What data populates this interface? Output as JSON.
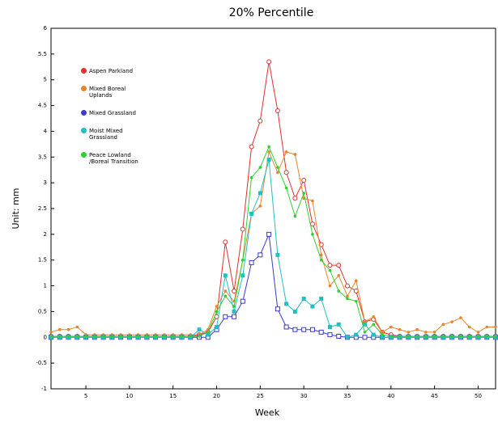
{
  "chart_data": {
    "type": "line",
    "title": "20% Percentile",
    "x_label": "Week",
    "y_label": "Unit: mm",
    "x": [
      1,
      2,
      3,
      4,
      5,
      6,
      7,
      8,
      9,
      10,
      11,
      12,
      13,
      14,
      15,
      16,
      17,
      18,
      19,
      20,
      21,
      22,
      23,
      24,
      25,
      26,
      27,
      28,
      29,
      30,
      31,
      32,
      33,
      34,
      35,
      36,
      37,
      38,
      39,
      40,
      41,
      42,
      43,
      44,
      45,
      46,
      47,
      48,
      49,
      50,
      51,
      52
    ],
    "xlim": [
      1,
      52
    ],
    "xticks": [
      5,
      10,
      15,
      20,
      25,
      30,
      35,
      40,
      45,
      50
    ],
    "ylim": [
      -1,
      6
    ],
    "yticks": [
      -1,
      -0.5,
      0,
      0.5,
      1,
      1.5,
      2,
      2.5,
      3,
      3.5,
      4,
      4.5,
      5,
      5.5,
      6
    ],
    "series": [
      {
        "name": "Aspen Parkland",
        "color": "#e03030",
        "marker": "open-circle",
        "values": [
          0.02,
          0.02,
          0.02,
          0.02,
          0.02,
          0.02,
          0.02,
          0.02,
          0.02,
          0.02,
          0.02,
          0.02,
          0.02,
          0.02,
          0.02,
          0.02,
          0.02,
          0.05,
          0.1,
          0.4,
          1.85,
          0.9,
          2.1,
          3.7,
          4.2,
          5.35,
          4.4,
          3.2,
          2.7,
          3.05,
          2.2,
          1.8,
          1.4,
          1.4,
          1.0,
          0.9,
          0.3,
          0.35,
          0.1,
          0.05,
          0.02,
          0.02,
          0.02,
          0.02,
          0.02,
          0.02,
          0.02,
          0.02,
          0.02,
          0.02,
          0.02,
          0.02
        ]
      },
      {
        "name": "Mixed Boreal Uplands",
        "color": "#e8852a",
        "marker": "dot",
        "values": [
          0.1,
          0.15,
          0.15,
          0.2,
          0.05,
          0.05,
          0.05,
          0.05,
          0.05,
          0.05,
          0.05,
          0.05,
          0.05,
          0.05,
          0.05,
          0.05,
          0.05,
          0.05,
          0.15,
          0.6,
          0.9,
          0.7,
          1.5,
          2.4,
          2.55,
          3.6,
          3.2,
          3.6,
          3.55,
          2.7,
          2.65,
          1.6,
          1.0,
          1.2,
          0.8,
          1.1,
          0.3,
          0.4,
          0.1,
          0.2,
          0.15,
          0.1,
          0.15,
          0.1,
          0.1,
          0.25,
          0.3,
          0.38,
          0.2,
          0.1,
          0.2,
          0.2
        ]
      },
      {
        "name": "Mixed Grassland",
        "color": "#3a3ad0",
        "marker": "open-square",
        "values": [
          0,
          0,
          0,
          0,
          0,
          0,
          0,
          0,
          0,
          0,
          0,
          0,
          0,
          0,
          0,
          0,
          0,
          0,
          0,
          0.15,
          0.4,
          0.4,
          0.7,
          1.45,
          1.6,
          2.0,
          0.55,
          0.2,
          0.15,
          0.15,
          0.15,
          0.1,
          0.05,
          0.02,
          0,
          0,
          0,
          0,
          0,
          0,
          0,
          0,
          0,
          0,
          0,
          0,
          0,
          0,
          0,
          0,
          0,
          0
        ]
      },
      {
        "name": "Moist Mixed Grassland",
        "color": "#20c0c0",
        "marker": "square",
        "values": [
          0,
          0,
          0,
          0,
          0,
          0,
          0,
          0,
          0,
          0,
          0,
          0,
          0,
          0,
          0,
          0,
          0,
          0.15,
          0.05,
          0.2,
          1.2,
          0.5,
          1.2,
          2.4,
          2.8,
          3.45,
          1.6,
          0.65,
          0.5,
          0.75,
          0.6,
          0.75,
          0.2,
          0.25,
          0,
          0.05,
          0.25,
          0.05,
          0,
          0,
          0,
          0,
          0,
          0,
          0,
          0,
          0,
          0,
          0,
          0,
          0,
          0
        ]
      },
      {
        "name": "Peace Lowland /Boreal Transition",
        "color": "#30d030",
        "marker": "dot",
        "values": [
          0.02,
          0.02,
          0.02,
          0.02,
          0.02,
          0.02,
          0.02,
          0.02,
          0.02,
          0.02,
          0.02,
          0.02,
          0.02,
          0.02,
          0.02,
          0.02,
          0.02,
          0.02,
          0.1,
          0.5,
          0.8,
          0.6,
          1.5,
          3.1,
          3.3,
          3.7,
          3.3,
          2.9,
          2.35,
          2.8,
          2.0,
          1.5,
          1.3,
          0.9,
          0.75,
          0.7,
          0.1,
          0.25,
          0.05,
          0.02,
          0.02,
          0.02,
          0.02,
          0.02,
          0.02,
          0.02,
          0.02,
          0.02,
          0.02,
          0.02,
          0.02,
          0.02
        ]
      }
    ]
  }
}
